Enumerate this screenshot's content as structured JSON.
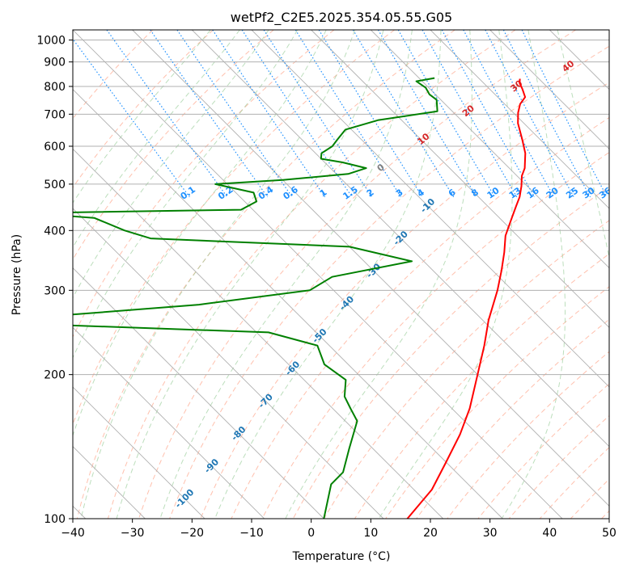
{
  "chart_data": {
    "type": "line",
    "title": "wetPf2_C2E5.2025.354.05.55.G05",
    "xlabel": "Temperature (°C)",
    "ylabel": "Pressure (hPa)",
    "xlim": [
      -40,
      50
    ],
    "ylim": [
      1050,
      100
    ],
    "x_ticks": [
      -40,
      -30,
      -20,
      -10,
      0,
      10,
      20,
      30,
      40,
      50
    ],
    "x_tick_labels": [
      "−40",
      "−30",
      "−20",
      "−10",
      "0",
      "10",
      "20",
      "30",
      "40",
      "50"
    ],
    "y_ticks": [
      100,
      200,
      300,
      400,
      500,
      600,
      700,
      800,
      900,
      1000
    ],
    "y_tick_labels": [
      "100",
      "200",
      "300",
      "400",
      "500",
      "600",
      "700",
      "800",
      "900",
      "1000"
    ],
    "skew": 1.0,
    "colors": {
      "temperature": "#ff0000",
      "dewpoint": "#008000",
      "isotherm_grid": "#b0b0b0",
      "dry_adiabat": "#ff8c69",
      "moist_adiabat": "#90c890",
      "mixing_ratio": "#1e90ff",
      "isotherm_label": "#1f77b4",
      "wet_bulb_label": "#d62728",
      "special_adiabat": "#d2b48c"
    },
    "series": [
      {
        "name": "Temperature",
        "color": "#ff0000",
        "points": [
          {
            "p": 830,
            "t": 26.8
          },
          {
            "p": 812,
            "t": 26.0
          },
          {
            "p": 790,
            "t": 25.5
          },
          {
            "p": 760,
            "t": 24.6
          },
          {
            "p": 735,
            "t": 22.6
          },
          {
            "p": 705,
            "t": 20.8
          },
          {
            "p": 670,
            "t": 19.0
          },
          {
            "p": 620,
            "t": 17.0
          },
          {
            "p": 580,
            "t": 15.2
          },
          {
            "p": 540,
            "t": 12.6
          },
          {
            "p": 520,
            "t": 10.8
          },
          {
            "p": 495,
            "t": 9.0
          },
          {
            "p": 470,
            "t": 6.9
          },
          {
            "p": 450,
            "t": 4.8
          },
          {
            "p": 420,
            "t": 1.5
          },
          {
            "p": 390,
            "t": -2.0
          },
          {
            "p": 360,
            "t": -5.0
          },
          {
            "p": 330,
            "t": -8.5
          },
          {
            "p": 300,
            "t": -12.5
          },
          {
            "p": 260,
            "t": -19.0
          },
          {
            "p": 230,
            "t": -24.0
          },
          {
            "p": 200,
            "t": -30.0
          },
          {
            "p": 170,
            "t": -37.0
          },
          {
            "p": 150,
            "t": -43.0
          },
          {
            "p": 130,
            "t": -50.5
          },
          {
            "p": 115,
            "t": -57.0
          },
          {
            "p": 100,
            "t": -66.0
          }
        ]
      },
      {
        "name": "Dewpoint",
        "color": "#008000",
        "points": [
          {
            "p": 833,
            "t": 12.6
          },
          {
            "p": 820,
            "t": 9.0
          },
          {
            "p": 795,
            "t": 9.5
          },
          {
            "p": 770,
            "t": 9.0
          },
          {
            "p": 750,
            "t": 9.3
          },
          {
            "p": 710,
            "t": 7.5
          },
          {
            "p": 680,
            "t": -4.0
          },
          {
            "p": 650,
            "t": -11.0
          },
          {
            "p": 620,
            "t": -14.0
          },
          {
            "p": 600,
            "t": -16.0
          },
          {
            "p": 580,
            "t": -19.0
          },
          {
            "p": 565,
            "t": -20.0
          },
          {
            "p": 555,
            "t": -17.0
          },
          {
            "p": 540,
            "t": -14.0
          },
          {
            "p": 525,
            "t": -18.0
          },
          {
            "p": 510,
            "t": -30.0
          },
          {
            "p": 500,
            "t": -42.0
          },
          {
            "p": 480,
            "t": -37.0
          },
          {
            "p": 460,
            "t": -38.0
          },
          {
            "p": 442,
            "t": -42.0
          },
          {
            "p": 435,
            "t": -78.0
          },
          {
            "p": 425,
            "t": -68.0
          },
          {
            "p": 400,
            "t": -65.0
          },
          {
            "p": 385,
            "t": -62.0
          },
          {
            "p": 370,
            "t": -30.0
          },
          {
            "p": 345,
            "t": -22.0
          },
          {
            "p": 320,
            "t": -38.0
          },
          {
            "p": 300,
            "t": -44.0
          },
          {
            "p": 280,
            "t": -65.0
          },
          {
            "p": 262,
            "t": -97.0
          },
          {
            "p": 256,
            "t": -100.0
          },
          {
            "p": 245,
            "t": -58.0
          },
          {
            "p": 230,
            "t": -52.0
          },
          {
            "p": 210,
            "t": -54.0
          },
          {
            "p": 195,
            "t": -53.0
          },
          {
            "p": 180,
            "t": -56.0
          },
          {
            "p": 170,
            "t": -57.0
          },
          {
            "p": 160,
            "t": -58.0
          },
          {
            "p": 140,
            "t": -64.0
          },
          {
            "p": 125,
            "t": -69.0
          },
          {
            "p": 118,
            "t": -73.0
          },
          {
            "p": 100,
            "t": -80.0
          }
        ]
      }
    ],
    "isotherm_labels": [
      "-100",
      "-90",
      "-80",
      "-70",
      "-60",
      "-50",
      "-40",
      "-30",
      "-20",
      "-10"
    ],
    "mixing_ratio_labels": [
      "0.1",
      "0.2",
      "0.4",
      "0.6",
      "1",
      "1.5",
      "2",
      "3",
      "4",
      "6",
      "8",
      "10",
      "13",
      "16",
      "20",
      "25",
      "30",
      "36"
    ],
    "wet_bulb_labels": [
      "0",
      "10",
      "20",
      "30",
      "40"
    ]
  }
}
